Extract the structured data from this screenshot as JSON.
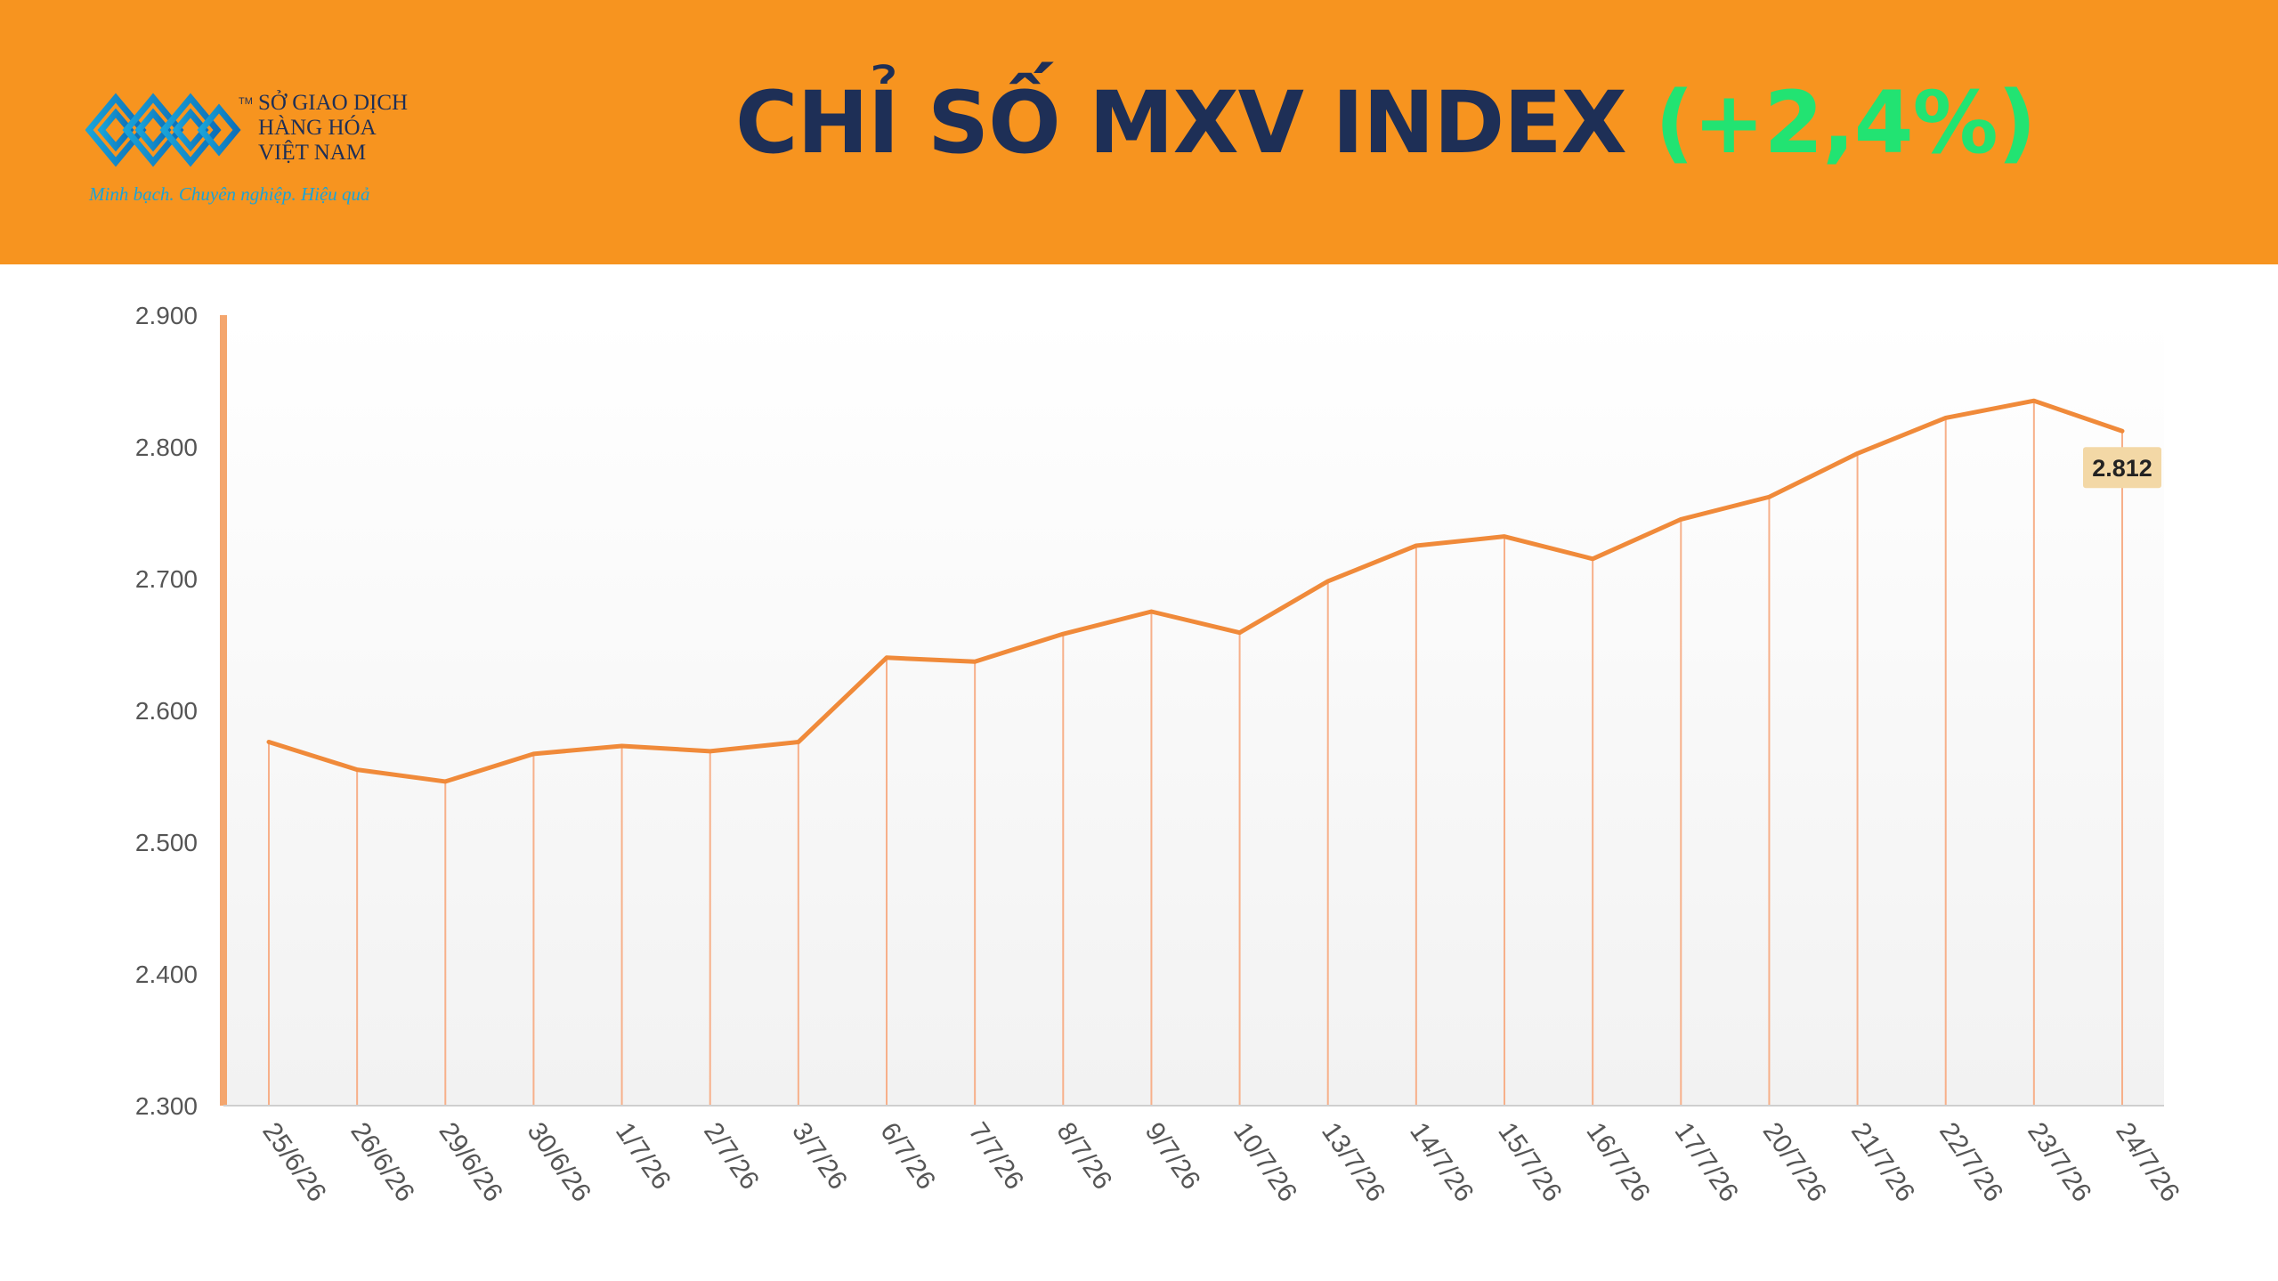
{
  "header": {
    "title_main": "CHỈ SỐ MXV INDEX",
    "title_change": "(+2,4%)",
    "background_color": "#f7941f",
    "title_color": "#1e2f56",
    "change_color": "#22e372"
  },
  "logo": {
    "icon": "mxv-logo-icon",
    "tm": "TM",
    "line1": "SỞ GIAO DỊCH",
    "line2": "HÀNG HÓA",
    "line3": "VIỆT NAM",
    "slogan": "Minh bạch. Chuyên nghiệp. Hiệu quả"
  },
  "chart_data": {
    "type": "line",
    "title": "",
    "xlabel": "",
    "ylabel": "",
    "ylim": [
      2300,
      2900
    ],
    "yticks": [
      2300,
      2400,
      2500,
      2600,
      2700,
      2800,
      2900
    ],
    "ytick_labels": [
      "2.300",
      "2.400",
      "2.500",
      "2.600",
      "2.700",
      "2.800",
      "2.900"
    ],
    "categories": [
      "25/6/26",
      "26/6/26",
      "29/6/26",
      "30/6/26",
      "1/7/26",
      "2/7/26",
      "3/7/26",
      "6/7/26",
      "7/7/26",
      "8/7/26",
      "9/7/26",
      "10/7/26",
      "13/7/26",
      "14/7/26",
      "15/7/26",
      "16/7/26",
      "17/7/26",
      "20/7/26",
      "21/7/26",
      "22/7/26",
      "23/7/26",
      "24/7/26"
    ],
    "values": [
      2576,
      2555,
      2546,
      2567,
      2573,
      2569,
      2576,
      2640,
      2637,
      2658,
      2675,
      2659,
      2698,
      2725,
      2732,
      2715,
      2745,
      2762,
      2795,
      2822,
      2835,
      2812
    ],
    "data_label": {
      "index": 21,
      "text": "2.812"
    },
    "grid": false,
    "legend": "none",
    "line_color": "#f08a3a",
    "drop_line_color": "#f7b08a",
    "axis_color": "#f4a66e",
    "label_bg_color": "#f3d8a6"
  }
}
